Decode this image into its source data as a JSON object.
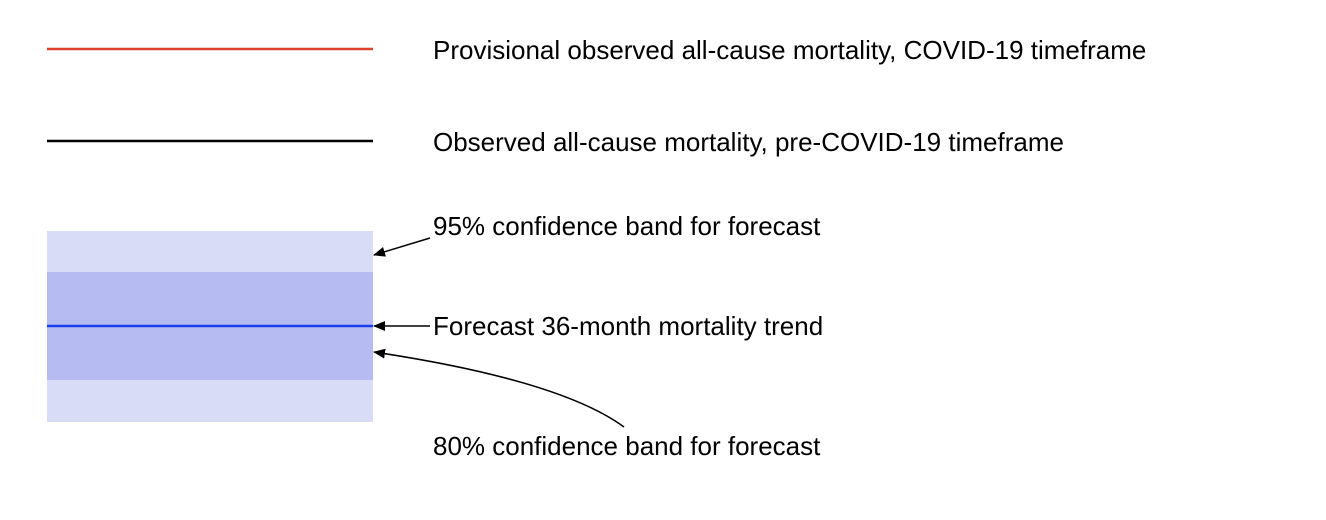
{
  "legend": {
    "entries": [
      {
        "key": "observed_covid",
        "label": "Provisional observed all-cause mortality, COVID-19 timeframe",
        "color": "#e0412e"
      },
      {
        "key": "observed_pre_covid",
        "label": "Observed all-cause mortality, pre-COVID-19 timeframe",
        "color": "#000000"
      },
      {
        "key": "band_95",
        "label": "95% confidence band for forecast",
        "color": "#d9dcf7"
      },
      {
        "key": "forecast_trend",
        "label": "Forecast 36-month mortality trend",
        "color": "#1a3ee8"
      },
      {
        "key": "band_80",
        "label": "80% confidence band for forecast",
        "color": "#b6bcf2"
      }
    ]
  }
}
